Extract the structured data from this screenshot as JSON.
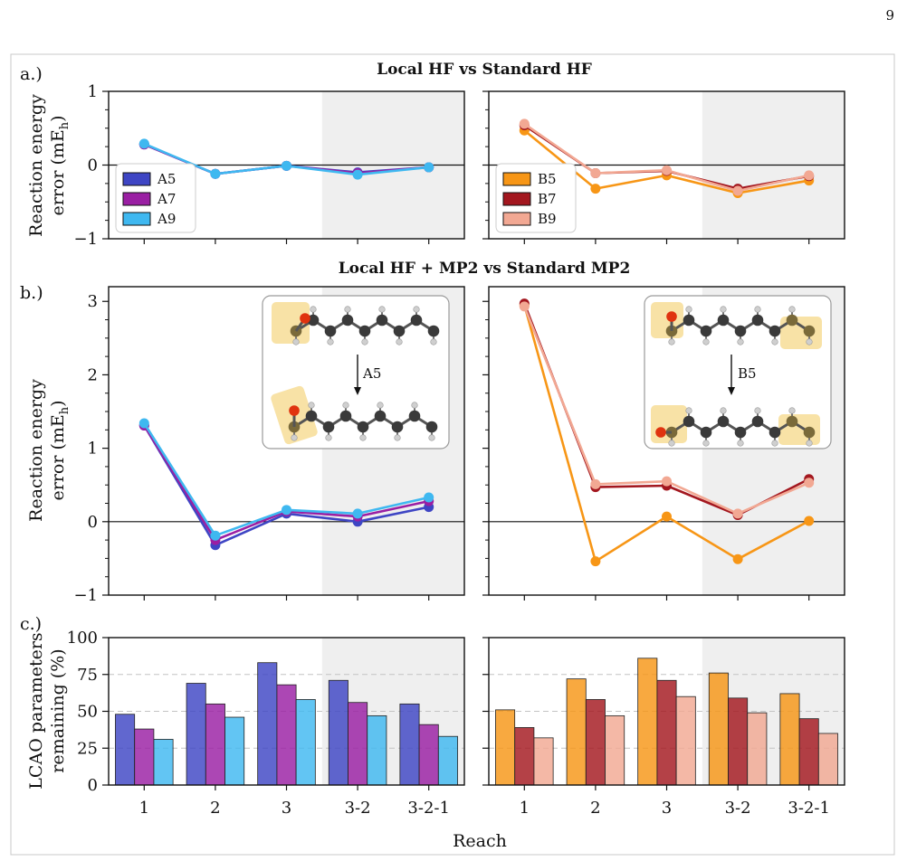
{
  "page_number": "9",
  "panels": {
    "a": {
      "label": "a.)",
      "title": "Local HF vs Standard HF"
    },
    "b": {
      "label": "b.)",
      "title": "Local HF + MP2 vs Standard MP2"
    },
    "c": {
      "label": "c.)",
      "title": ""
    }
  },
  "xlabel": "Reach",
  "ylabels": {
    "a": [
      "Reaction energy",
      "error (mE",
      "h",
      ")"
    ],
    "b": [
      "Reaction energy",
      "error (mE",
      "h",
      ")"
    ],
    "c": [
      "LCAO parameters",
      "remaining (%)"
    ]
  },
  "insets": {
    "left_arrow_label": "A5",
    "right_arrow_label": "B5"
  },
  "colors": {
    "A5": "#3e45c4",
    "A7": "#9a1fa3",
    "A9": "#3fb8f0",
    "B5": "#f79616",
    "B7": "#a3171f",
    "B9": "#f2a893",
    "shade": "#efefef"
  },
  "chart_data": [
    {
      "id": "a-left",
      "type": "line",
      "categories": [
        "1",
        "2",
        "3",
        "3-2",
        "3-2-1"
      ],
      "ylim": [
        -1,
        1
      ],
      "yticks": [
        -1,
        0,
        1
      ],
      "ytick_labels": [
        "−1",
        "0",
        "1"
      ],
      "shaded_from_category": "3-2",
      "legend": "lower-left",
      "series": [
        {
          "name": "A5",
          "values": [
            0.28,
            -0.12,
            -0.01,
            -0.1,
            -0.03
          ]
        },
        {
          "name": "A7",
          "values": [
            0.28,
            -0.12,
            -0.01,
            -0.11,
            -0.03
          ]
        },
        {
          "name": "A9",
          "values": [
            0.29,
            -0.12,
            -0.01,
            -0.13,
            -0.03
          ]
        }
      ]
    },
    {
      "id": "a-right",
      "type": "line",
      "categories": [
        "1",
        "2",
        "3",
        "3-2",
        "3-2-1"
      ],
      "ylim": [
        -1,
        1
      ],
      "yticks": [
        -1,
        0,
        1
      ],
      "ytick_labels": [
        "",
        "",
        ""
      ],
      "shaded_from_category": "3-2",
      "legend": "lower-left",
      "series": [
        {
          "name": "B5",
          "values": [
            0.47,
            -0.32,
            -0.14,
            -0.38,
            -0.21
          ]
        },
        {
          "name": "B7",
          "values": [
            0.54,
            -0.11,
            -0.08,
            -0.32,
            -0.15
          ]
        },
        {
          "name": "B9",
          "values": [
            0.56,
            -0.11,
            -0.07,
            -0.35,
            -0.14
          ]
        }
      ]
    },
    {
      "id": "b-left",
      "type": "line",
      "categories": [
        "1",
        "2",
        "3",
        "3-2",
        "3-2-1"
      ],
      "ylim": [
        -1,
        3.2
      ],
      "yticks": [
        -1,
        0,
        1,
        2,
        3
      ],
      "ytick_labels": [
        "−1",
        "0",
        "1",
        "2",
        "3"
      ],
      "shaded_from_category": "3-2",
      "series": [
        {
          "name": "A5",
          "values": [
            1.31,
            -0.32,
            0.11,
            0.0,
            0.2
          ]
        },
        {
          "name": "A7",
          "values": [
            1.31,
            -0.25,
            0.14,
            0.07,
            0.28
          ]
        },
        {
          "name": "A9",
          "values": [
            1.34,
            -0.19,
            0.16,
            0.11,
            0.33
          ]
        }
      ]
    },
    {
      "id": "b-right",
      "type": "line",
      "categories": [
        "1",
        "2",
        "3",
        "3-2",
        "3-2-1"
      ],
      "ylim": [
        -1,
        3.2
      ],
      "yticks": [
        -1,
        0,
        1,
        2,
        3
      ],
      "ytick_labels": [
        "",
        "",
        "",
        "",
        ""
      ],
      "shaded_from_category": "3-2",
      "series": [
        {
          "name": "B5",
          "values": [
            2.95,
            -0.54,
            0.07,
            -0.51,
            0.01
          ]
        },
        {
          "name": "B7",
          "values": [
            2.97,
            0.47,
            0.49,
            0.09,
            0.58
          ]
        },
        {
          "name": "B9",
          "values": [
            2.93,
            0.51,
            0.55,
            0.11,
            0.53
          ]
        }
      ]
    },
    {
      "id": "c-left",
      "type": "bar",
      "categories": [
        "1",
        "2",
        "3",
        "3-2",
        "3-2-1"
      ],
      "ylim": [
        0,
        100
      ],
      "yticks": [
        0,
        25,
        50,
        75,
        100
      ],
      "ytick_labels": [
        "0",
        "25",
        "50",
        "75",
        "100"
      ],
      "shaded_from_category": "3-2",
      "series": [
        {
          "name": "A5",
          "values": [
            48,
            69,
            83,
            71,
            55
          ]
        },
        {
          "name": "A7",
          "values": [
            38,
            55,
            68,
            56,
            41
          ]
        },
        {
          "name": "A9",
          "values": [
            31,
            46,
            58,
            47,
            33
          ]
        }
      ]
    },
    {
      "id": "c-right",
      "type": "bar",
      "categories": [
        "1",
        "2",
        "3",
        "3-2",
        "3-2-1"
      ],
      "ylim": [
        0,
        100
      ],
      "yticks": [
        0,
        25,
        50,
        75,
        100
      ],
      "ytick_labels": [
        "",
        "",
        "",
        "",
        ""
      ],
      "shaded_from_category": "3-2",
      "series": [
        {
          "name": "B5",
          "values": [
            51,
            72,
            86,
            76,
            62
          ]
        },
        {
          "name": "B7",
          "values": [
            39,
            58,
            71,
            59,
            45
          ]
        },
        {
          "name": "B9",
          "values": [
            32,
            47,
            60,
            49,
            35
          ]
        }
      ]
    }
  ]
}
